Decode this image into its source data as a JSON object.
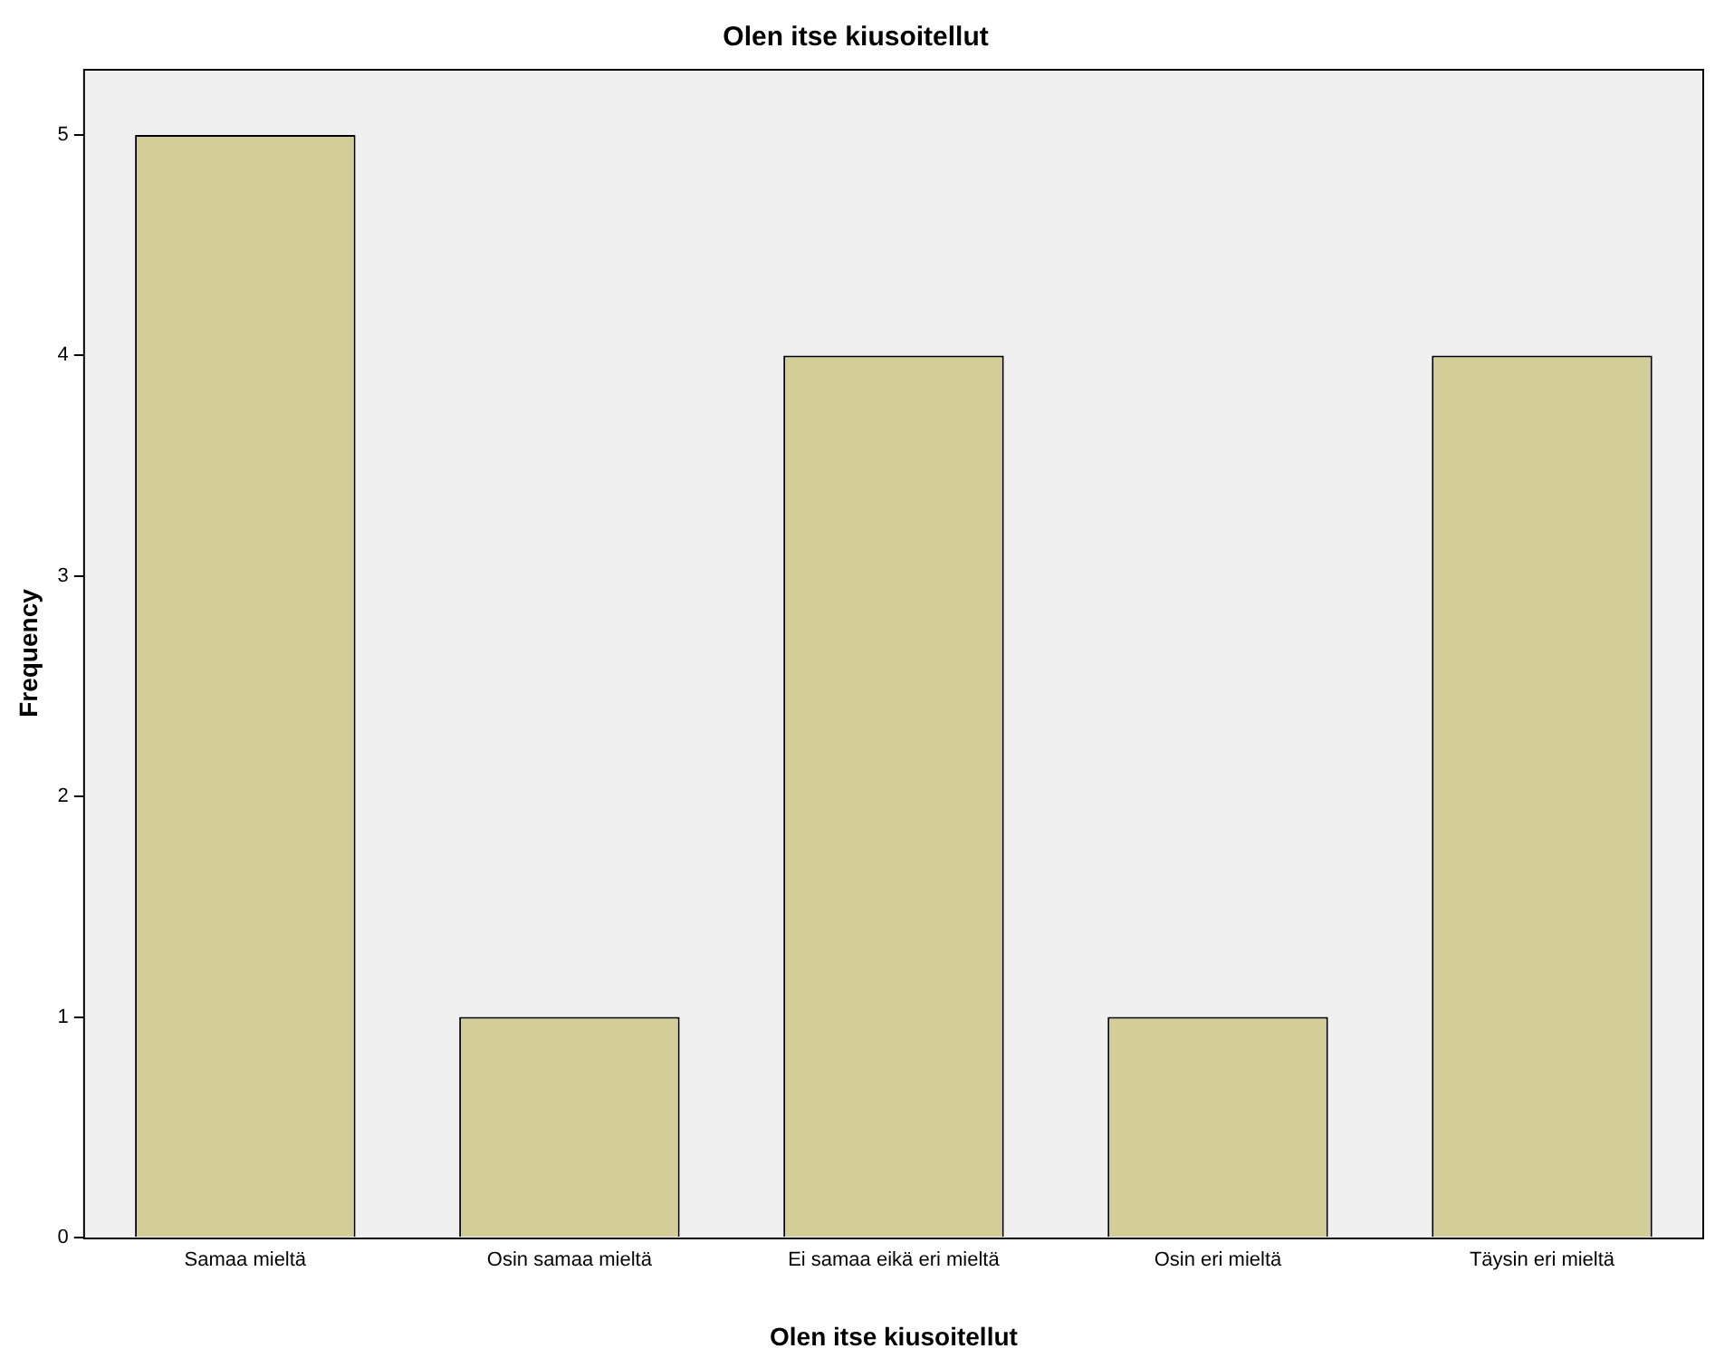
{
  "chart_data": {
    "type": "bar",
    "title": "Olen itse kiusoitellut",
    "xlabel": "Olen itse kiusoitellut",
    "ylabel": "Frequency",
    "categories": [
      "Samaa mieltä",
      "Osin samaa mieltä",
      "Ei samaa eikä eri mieltä",
      "Osin eri mieltä",
      "Täysin eri mieltä"
    ],
    "values": [
      5,
      1,
      4,
      1,
      4
    ],
    "color": "#d3ce97",
    "ylim": [
      0,
      5.3
    ],
    "yticks": [
      0,
      1,
      2,
      3,
      4,
      5
    ],
    "grid": false,
    "legend": false
  }
}
